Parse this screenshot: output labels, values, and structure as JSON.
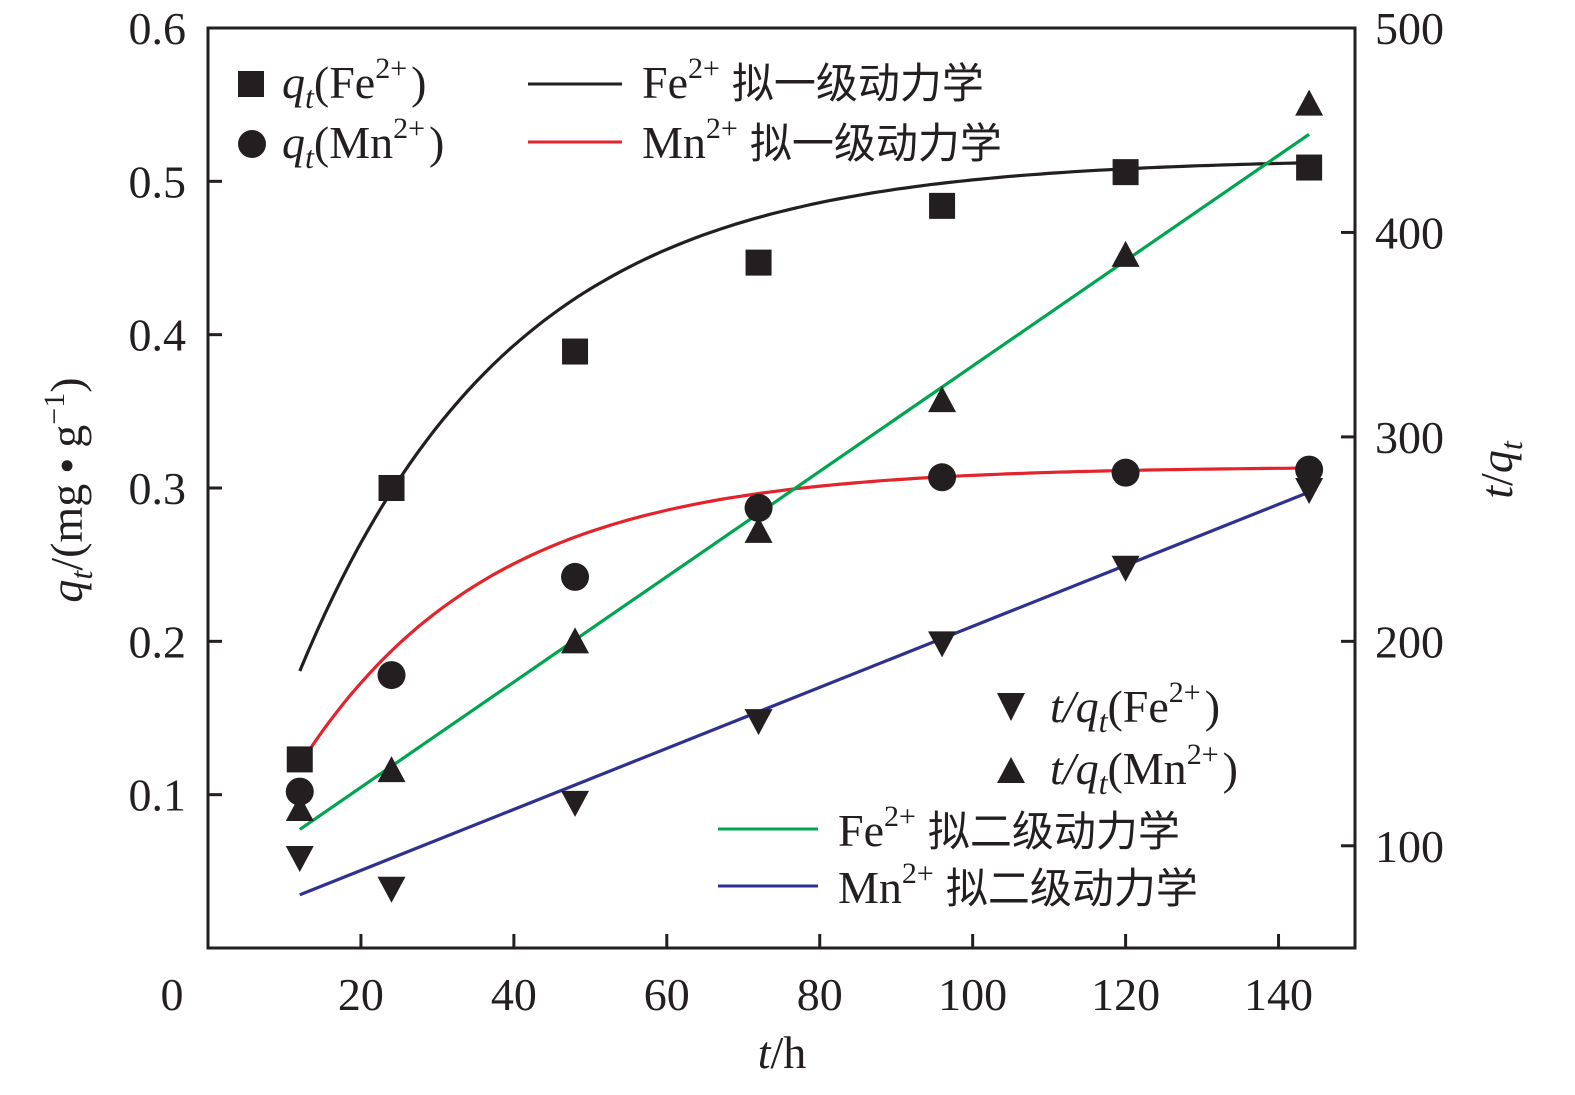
{
  "chart_data": {
    "type": "scatter",
    "x_axis": {
      "var": "t",
      "unit": "h",
      "range": [
        0,
        150
      ],
      "ticks": [
        0,
        20,
        40,
        60,
        80,
        100,
        120,
        140
      ],
      "tick_labels": [
        "0",
        "20",
        "40",
        "60",
        "80",
        "100",
        "120",
        "140"
      ]
    },
    "y_left": {
      "var": "q",
      "sub": "t",
      "unit_open": "/(mg",
      "unit_dot": "•",
      "unit_g": "g",
      "unit_exp": "−1",
      "unit_close": ")",
      "range": [
        0,
        0.6
      ],
      "ticks": [
        0.1,
        0.2,
        0.3,
        0.4,
        0.5,
        0.6
      ],
      "tick_labels": [
        "0.1",
        "0.2",
        "0.3",
        "0.4",
        "0.5",
        "0.6"
      ]
    },
    "y_right": {
      "var_t": "t",
      "slash": "/",
      "var_q": "q",
      "sub": "t",
      "range": [
        50,
        500
      ],
      "ticks": [
        100,
        200,
        300,
        400,
        500
      ],
      "tick_labels": [
        "100",
        "200",
        "300",
        "400",
        "500"
      ]
    },
    "scatter": [
      {
        "id": "qt_fe",
        "axis": "left",
        "marker": "square",
        "x": [
          12,
          24,
          48,
          72,
          96,
          120,
          144
        ],
        "y": [
          0.123,
          0.3,
          0.389,
          0.447,
          0.484,
          0.506,
          0.509
        ],
        "legend": {
          "var": "q",
          "sub": "t",
          "ion": "(Fe",
          "charge": "2+",
          "close": ")"
        }
      },
      {
        "id": "qt_mn",
        "axis": "left",
        "marker": "circle",
        "x": [
          12,
          24,
          48,
          72,
          96,
          120,
          144
        ],
        "y": [
          0.102,
          0.178,
          0.242,
          0.287,
          0.307,
          0.31,
          0.312
        ],
        "legend": {
          "var": "q",
          "sub": "t",
          "ion": "(Mn",
          "charge": "2+",
          "close": ")"
        }
      },
      {
        "id": "tq_fe",
        "axis": "right",
        "marker": "triangle-down",
        "x": [
          12,
          24,
          48,
          72,
          96,
          120,
          144
        ],
        "y": [
          94,
          79,
          121,
          161,
          199,
          236,
          274
        ],
        "legend": {
          "pre": "t/",
          "var": "q",
          "sub": "t",
          "ion": "(Fe",
          "charge": "2+",
          "close": ")"
        }
      },
      {
        "id": "tq_mn",
        "axis": "right",
        "marker": "triangle-up",
        "x": [
          12,
          24,
          48,
          72,
          96,
          120,
          144
        ],
        "y": [
          118,
          137,
          200,
          254,
          318,
          389,
          463
        ],
        "legend": {
          "pre": "t/",
          "var": "q",
          "sub": "t",
          "ion": "(Mn",
          "charge": "2+",
          "close": ")"
        }
      }
    ],
    "fits": [
      {
        "id": "fit_fe_pfo",
        "axis": "left",
        "color": "#231f20",
        "model": "pfo",
        "qe": 0.515,
        "k": 0.036,
        "x_start": 12,
        "x_end": 144,
        "legend": {
          "ion": "Fe",
          "charge": "2+",
          "name": "拟一级动力学"
        }
      },
      {
        "id": "fit_mn_pfo",
        "axis": "left",
        "color": "#e3242b",
        "model": "pfo",
        "qe": 0.314,
        "k": 0.04,
        "x_start": 12,
        "x_end": 144,
        "legend": {
          "ion": "Mn",
          "charge": "2+",
          "name": "拟一级动力学"
        }
      },
      {
        "id": "fit_fe_pso",
        "axis": "right",
        "color": "#00a54f",
        "model": "linear",
        "x": [
          12,
          144
        ],
        "y": [
          108,
          448
        ],
        "legend": {
          "ion": "Fe",
          "charge": "2+",
          "name": "拟二级动力学"
        }
      },
      {
        "id": "fit_mn_pso",
        "axis": "right",
        "color": "#2e3192",
        "model": "linear",
        "x": [
          12,
          144
        ],
        "y": [
          76,
          273
        ],
        "legend": {
          "ion": "Mn",
          "charge": "2+",
          "name": "拟二级动力学"
        }
      }
    ],
    "x_title": {
      "var": "t",
      "unit": "/h"
    },
    "legend_placement": [
      "top-left",
      "bottom-right"
    ]
  }
}
